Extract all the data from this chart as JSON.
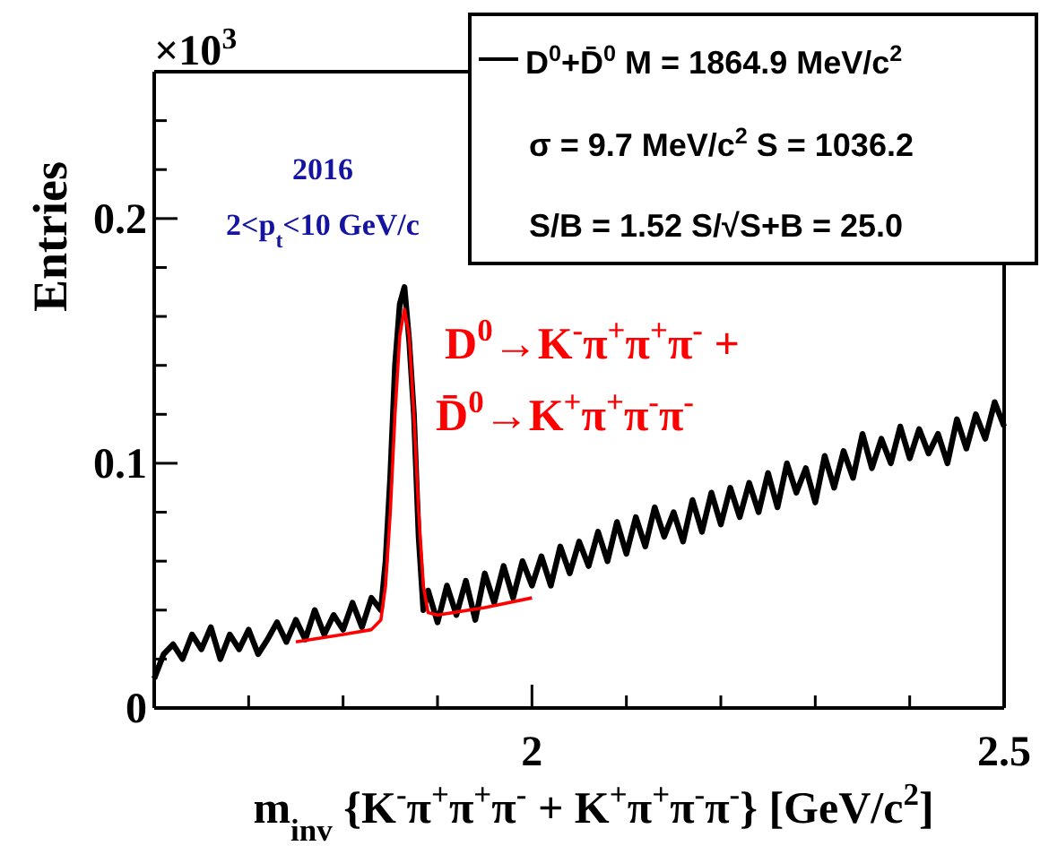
{
  "chart_data": {
    "type": "line",
    "xlabel": "m$_{inv}$ {K$^{-}$π$^{+}$π$^{+}$π$^{-}$ + K$^{+}$π$^{+}$π$^{-}$π$^{-}$} [GeV/c$^{2}$]",
    "ylabel": "Entries",
    "xlim": [
      1.6,
      2.5
    ],
    "xticks": [
      {
        "value": 1.7,
        "label": null
      },
      {
        "value": 1.8,
        "label": null
      },
      {
        "value": 1.9,
        "label": null
      },
      2,
      {
        "value": 2.1,
        "label": null
      },
      {
        "value": 2.2,
        "label": null
      },
      {
        "value": 2.3,
        "label": null
      },
      {
        "value": 2.4,
        "label": null
      },
      2.5
    ],
    "ylim": [
      0,
      0.26
    ],
    "yticks": [
      0,
      {
        "value": 0.02,
        "label": null
      },
      {
        "value": 0.04,
        "label": null
      },
      {
        "value": 0.06,
        "label": null
      },
      {
        "value": 0.08,
        "label": null
      },
      0.1,
      {
        "value": 0.12,
        "label": null
      },
      {
        "value": 0.14,
        "label": null
      },
      {
        "value": 0.16,
        "label": null
      },
      {
        "value": 0.18,
        "label": null
      },
      0.2,
      {
        "value": 0.22,
        "label": null
      },
      {
        "value": 0.24,
        "label": null
      }
    ],
    "legend": "top right",
    "marker": "none",
    "line_style": "solid",
    "series": [
      {
        "name": "D$^{0}$+D̄$^{0}$ M = 1864.9 MeV/c$^{2}$",
        "color": "#000000",
        "x": [
          1.6,
          1.61,
          1.62,
          1.63,
          1.64,
          1.65,
          1.66,
          1.67,
          1.68,
          1.69,
          1.7,
          1.71,
          1.72,
          1.73,
          1.74,
          1.75,
          1.76,
          1.77,
          1.78,
          1.79,
          1.8,
          1.81,
          1.82,
          1.83,
          1.84,
          1.845,
          1.85,
          1.855,
          1.86,
          1.865,
          1.87,
          1.875,
          1.88,
          1.885,
          1.89,
          1.9,
          1.91,
          1.92,
          1.93,
          1.94,
          1.95,
          1.96,
          1.97,
          1.98,
          1.99,
          2.0,
          2.01,
          2.02,
          2.03,
          2.04,
          2.05,
          2.06,
          2.07,
          2.08,
          2.09,
          2.1,
          2.11,
          2.12,
          2.13,
          2.14,
          2.15,
          2.16,
          2.17,
          2.18,
          2.19,
          2.2,
          2.21,
          2.22,
          2.23,
          2.24,
          2.25,
          2.26,
          2.27,
          2.28,
          2.29,
          2.3,
          2.31,
          2.32,
          2.33,
          2.34,
          2.35,
          2.36,
          2.37,
          2.38,
          2.39,
          2.4,
          2.41,
          2.42,
          2.43,
          2.44,
          2.45,
          2.46,
          2.47,
          2.48,
          2.49,
          2.5
        ],
        "values": [
          0.012,
          0.022,
          0.026,
          0.02,
          0.03,
          0.024,
          0.033,
          0.02,
          0.03,
          0.024,
          0.032,
          0.022,
          0.028,
          0.035,
          0.027,
          0.036,
          0.028,
          0.04,
          0.03,
          0.038,
          0.032,
          0.043,
          0.033,
          0.045,
          0.04,
          0.06,
          0.095,
          0.14,
          0.165,
          0.172,
          0.15,
          0.12,
          0.07,
          0.04,
          0.048,
          0.035,
          0.05,
          0.038,
          0.052,
          0.036,
          0.055,
          0.043,
          0.058,
          0.045,
          0.06,
          0.05,
          0.062,
          0.05,
          0.066,
          0.055,
          0.068,
          0.058,
          0.072,
          0.06,
          0.076,
          0.063,
          0.078,
          0.066,
          0.082,
          0.07,
          0.08,
          0.068,
          0.085,
          0.072,
          0.088,
          0.075,
          0.09,
          0.078,
          0.092,
          0.08,
          0.096,
          0.082,
          0.1,
          0.088,
          0.098,
          0.084,
          0.103,
          0.09,
          0.105,
          0.094,
          0.112,
          0.098,
          0.11,
          0.1,
          0.115,
          0.102,
          0.114,
          0.104,
          0.112,
          0.1,
          0.118,
          0.106,
          0.12,
          0.11,
          0.125,
          0.115
        ]
      },
      {
        "color": "#ff0000",
        "x": [
          1.75,
          1.8,
          1.83,
          1.84,
          1.845,
          1.85,
          1.855,
          1.86,
          1.865,
          1.87,
          1.875,
          1.88,
          1.885,
          1.89,
          1.9,
          1.95,
          2.0
        ],
        "values": [
          0.027,
          0.03,
          0.032,
          0.036,
          0.05,
          0.08,
          0.12,
          0.152,
          0.163,
          0.152,
          0.12,
          0.08,
          0.05,
          0.039,
          0.038,
          0.041,
          0.045
        ]
      }
    ],
    "annotations": [
      "×10$^{3}$",
      "2016",
      "2<p$_{t}$<10 GeV/c",
      "σ = 9.7 MeV/c$^{2}$  S = 1036.2",
      "S/B = 1.52  S/√S+B = 25.0",
      "D$^{0}$→K$^{-}$π$^{+}$π$^{+}$π$^{-}$ +",
      "D̄$^{0}$→K$^{+}$π$^{+}$π$^{-}$π$^{-}$"
    ]
  }
}
